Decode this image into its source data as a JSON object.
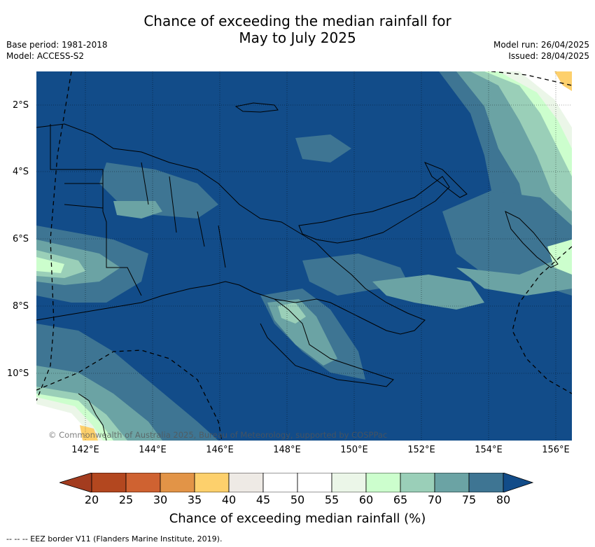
{
  "title_line1": "Chance of exceeding the median rainfall for",
  "title_line2": "May to July 2025",
  "base_period": "Base period: 1981-2018",
  "model": "Model: ACCESS-S2",
  "model_run": "Model run: 26/04/2025",
  "issued": "Issued: 28/04/2025",
  "lat_labels": [
    "2°S",
    "4°S",
    "6°S",
    "8°S",
    "10°S"
  ],
  "lon_labels": [
    "142°E",
    "144°E",
    "146°E",
    "148°E",
    "150°E",
    "152°E",
    "154°E",
    "156°E"
  ],
  "copyright": "© Commonwealth of Australia 2025, Bureau of Meteorology, supported by COSPPac",
  "colorbar": {
    "ticks": [
      "20",
      "25",
      "30",
      "35",
      "40",
      "45",
      "50",
      "55",
      "60",
      "65",
      "70",
      "75",
      "80"
    ],
    "colors": [
      "#a33c1f",
      "#b3471f",
      "#cf6231",
      "#e29447",
      "#fdd06c",
      "#eeeae5",
      "#ffffff",
      "#ffffff",
      "#ebf6e8",
      "#ccfecd",
      "#9acfb8",
      "#6ba3a4",
      "#3e7593",
      "#124c89"
    ],
    "label": "Chance of exceeding median rainfall (%)"
  },
  "footer": "-- -- -- EEZ border V11 (Flanders Marine Institute, 2019).",
  "colors": {
    "dominant": "#124c89"
  }
}
